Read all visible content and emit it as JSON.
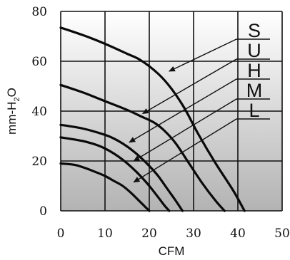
{
  "chart_data": {
    "type": "line",
    "xlabel": "CFM",
    "ylabel": {
      "prefix": "mm-H",
      "subscript": "2",
      "suffix": "O"
    },
    "xlim": [
      0,
      50
    ],
    "ylim": [
      0,
      80
    ],
    "x_ticks": [
      0,
      10,
      20,
      30,
      40,
      50
    ],
    "y_ticks": [
      0,
      20,
      40,
      60,
      80
    ],
    "grid": true,
    "background": "gradient-gray",
    "series": [
      {
        "name": "S",
        "points": [
          [
            0,
            73.5
          ],
          [
            5,
            70.5
          ],
          [
            10,
            67
          ],
          [
            15,
            63
          ],
          [
            18,
            60.5
          ],
          [
            22,
            55
          ],
          [
            25,
            49
          ],
          [
            28,
            41
          ],
          [
            31,
            31
          ],
          [
            35,
            19
          ],
          [
            39,
            8
          ],
          [
            41.5,
            0
          ]
        ],
        "arrow_target": [
          24.5,
          56
        ]
      },
      {
        "name": "U",
        "points": [
          [
            0,
            50.5
          ],
          [
            5,
            47.5
          ],
          [
            10,
            44
          ],
          [
            15,
            40.5
          ],
          [
            18,
            38
          ],
          [
            21,
            35.5
          ],
          [
            23.5,
            32
          ],
          [
            26,
            27
          ],
          [
            29,
            19
          ],
          [
            32,
            11
          ],
          [
            35,
            4
          ],
          [
            37,
            0
          ]
        ],
        "arrow_target": [
          18.5,
          39
        ]
      },
      {
        "name": "H",
        "points": [
          [
            0,
            34.5
          ],
          [
            5,
            33
          ],
          [
            10,
            30.5
          ],
          [
            12,
            29
          ],
          [
            14,
            27
          ],
          [
            16,
            24.5
          ],
          [
            18,
            21.5
          ],
          [
            20,
            18
          ],
          [
            22,
            14
          ],
          [
            24,
            9
          ],
          [
            26,
            4
          ],
          [
            27.5,
            0
          ]
        ],
        "arrow_target": [
          15.5,
          27.5
        ]
      },
      {
        "name": "M",
        "points": [
          [
            0,
            29.5
          ],
          [
            5,
            28
          ],
          [
            8,
            26.5
          ],
          [
            10,
            25
          ],
          [
            12,
            23
          ],
          [
            14,
            20.5
          ],
          [
            16,
            17.5
          ],
          [
            18,
            14
          ],
          [
            20,
            10
          ],
          [
            22,
            5.5
          ],
          [
            23.5,
            2
          ],
          [
            24.5,
            0
          ]
        ],
        "arrow_target": [
          16.5,
          20
        ]
      },
      {
        "name": "L",
        "points": [
          [
            0,
            19
          ],
          [
            3,
            18.5
          ],
          [
            5,
            17.5
          ],
          [
            8,
            15.5
          ],
          [
            10,
            14
          ],
          [
            12,
            12
          ],
          [
            14,
            10
          ],
          [
            16,
            7
          ],
          [
            18,
            3.5
          ],
          [
            20,
            0
          ]
        ],
        "arrow_target": [
          16.5,
          11.5
        ]
      }
    ]
  }
}
